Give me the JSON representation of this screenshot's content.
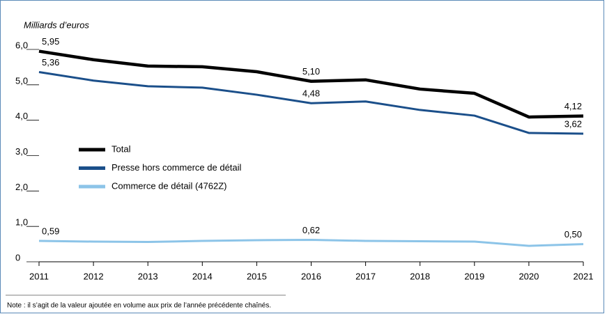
{
  "chart_data": {
    "type": "line",
    "y_label": "Milliards d’euros",
    "x": [
      2011,
      2012,
      2013,
      2014,
      2015,
      2016,
      2017,
      2018,
      2019,
      2020,
      2021
    ],
    "xlim": [
      2011,
      2021
    ],
    "xticks": [
      2011,
      2012,
      2013,
      2014,
      2015,
      2016,
      2017,
      2018,
      2019,
      2020,
      2021
    ],
    "ylim": [
      0,
      6
    ],
    "yticks": [
      0,
      {
        "value": 1,
        "label": "1,0"
      },
      {
        "value": 2,
        "label": "2,0"
      },
      {
        "value": 3,
        "label": "3,0"
      },
      {
        "value": 4,
        "label": "4,0"
      },
      {
        "value": 5,
        "label": "5,0"
      },
      {
        "value": 6,
        "label": "6,0"
      }
    ],
    "series": [
      {
        "name": "Total",
        "color": "#000000",
        "values": [
          5.95,
          5.71,
          5.53,
          5.51,
          5.37,
          5.1,
          5.14,
          4.88,
          4.76,
          4.09,
          4.12
        ],
        "value_labels": [
          "5,95",
          null,
          null,
          null,
          null,
          "5,10",
          null,
          null,
          null,
          null,
          "4,12"
        ]
      },
      {
        "name": "Presse hors commerce de détail",
        "color": "#1b4f8a",
        "values": [
          5.36,
          5.12,
          4.96,
          4.92,
          4.72,
          4.48,
          4.53,
          4.29,
          4.13,
          3.64,
          3.62
        ],
        "value_labels": [
          "5,36",
          null,
          null,
          null,
          null,
          "4,48",
          null,
          null,
          null,
          null,
          "3,62"
        ]
      },
      {
        "name": "Commerce de détail (4762Z)",
        "color": "#8cc4e8",
        "values": [
          0.59,
          0.57,
          0.56,
          0.59,
          0.61,
          0.62,
          0.59,
          0.58,
          0.57,
          0.45,
          0.5
        ],
        "value_labels": [
          "0,59",
          null,
          null,
          null,
          null,
          "0,62",
          null,
          null,
          null,
          null,
          "0,50"
        ]
      }
    ],
    "legend": "middle-left",
    "note": "Note : il s’agit de la valeur ajoutée en volume aux prix de l’année précédente chaînés."
  }
}
